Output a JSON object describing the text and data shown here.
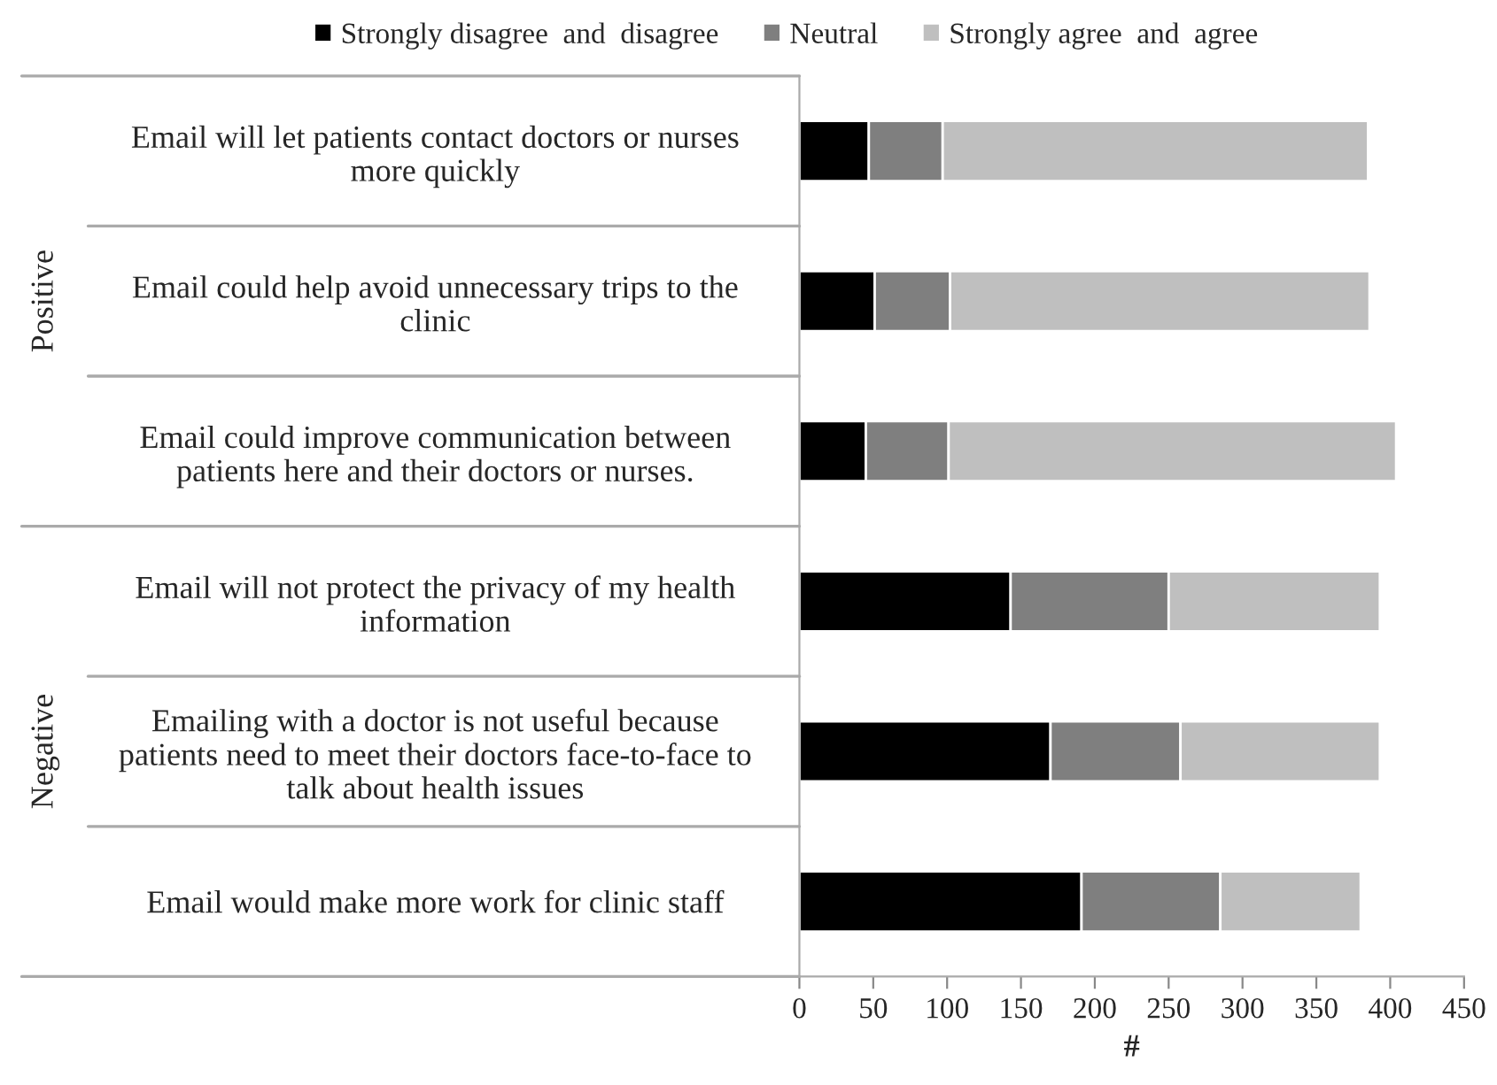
{
  "chart_data": {
    "type": "bar",
    "orientation": "horizontal",
    "stacked": true,
    "categories": [
      "Email will let patients contact doctors or nurses\nmore quickly",
      "Email could help avoid unnecessary trips to the\nclinic",
      "Email could improve communication between\npatients here and their doctors or nurses.",
      "Email will not protect the privacy of my health\ninformation",
      "Emailing with a doctor is not useful because\npatients need to meet their doctors face-to-face to\ntalk about health issues",
      "Email would make more work for clinic staff"
    ],
    "series": [
      {
        "name": "Strongly disagree  and  disagree",
        "color": "#000000",
        "values": [
          47,
          51,
          45,
          143,
          170,
          191
        ]
      },
      {
        "name": "Neutral",
        "color": "#7f7f7f",
        "values": [
          50,
          51,
          56,
          107,
          88,
          94
        ]
      },
      {
        "name": "Strongly agree  and  agree",
        "color": "#bfbfbf",
        "values": [
          288,
          284,
          303,
          143,
          135,
          95
        ]
      }
    ],
    "xlabel": "#",
    "xlim": [
      0,
      450
    ],
    "xticks": [
      0,
      50,
      100,
      150,
      200,
      250,
      300,
      350,
      400,
      450
    ],
    "annotations": [
      "Positive",
      "Negative"
    ],
    "legend": "top",
    "grid": false
  }
}
